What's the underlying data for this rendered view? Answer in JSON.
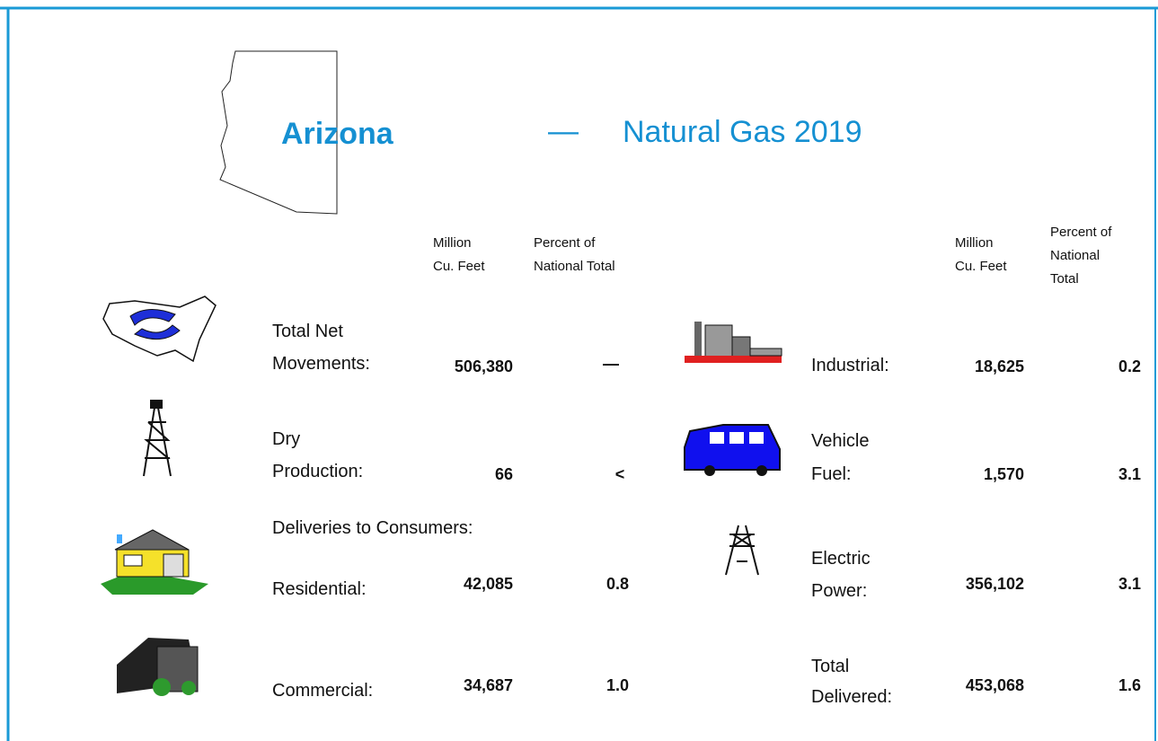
{
  "header": {
    "state": "Arizona",
    "dash": "—",
    "title": "Natural Gas 2019"
  },
  "left_headers": {
    "units": [
      "Million",
      "Cu. Feet"
    ],
    "percent": [
      "Percent of",
      "National Total"
    ]
  },
  "right_headers": {
    "units": [
      "Million",
      "Cu. Feet"
    ],
    "percent": [
      "Percent of",
      "National",
      "Total"
    ]
  },
  "left_rows": [
    {
      "label": [
        "Total Net",
        "Movements:"
      ],
      "value": "506,380",
      "percent": "—"
    },
    {
      "label": [
        "Dry",
        "Production:"
      ],
      "value": "66",
      "percent": "<"
    },
    {
      "label": [
        "Residential:"
      ],
      "value": "42,085",
      "percent": "0.8"
    },
    {
      "label": [
        "Commercial:"
      ],
      "value": "34,687",
      "percent": "1.0"
    }
  ],
  "section": "Deliveries to Consumers:",
  "right_rows": [
    {
      "label": [
        "Industrial:"
      ],
      "value": "18,625",
      "percent": "0.2"
    },
    {
      "label": [
        "Vehicle",
        "Fuel:"
      ],
      "value": "1,570",
      "percent": "3.1"
    },
    {
      "label": [
        "Electric",
        "Power:"
      ],
      "value": "356,102",
      "percent": "3.1"
    },
    {
      "label": [
        "Total",
        "Delivered:"
      ],
      "value": "453,068",
      "percent": "1.6"
    }
  ]
}
